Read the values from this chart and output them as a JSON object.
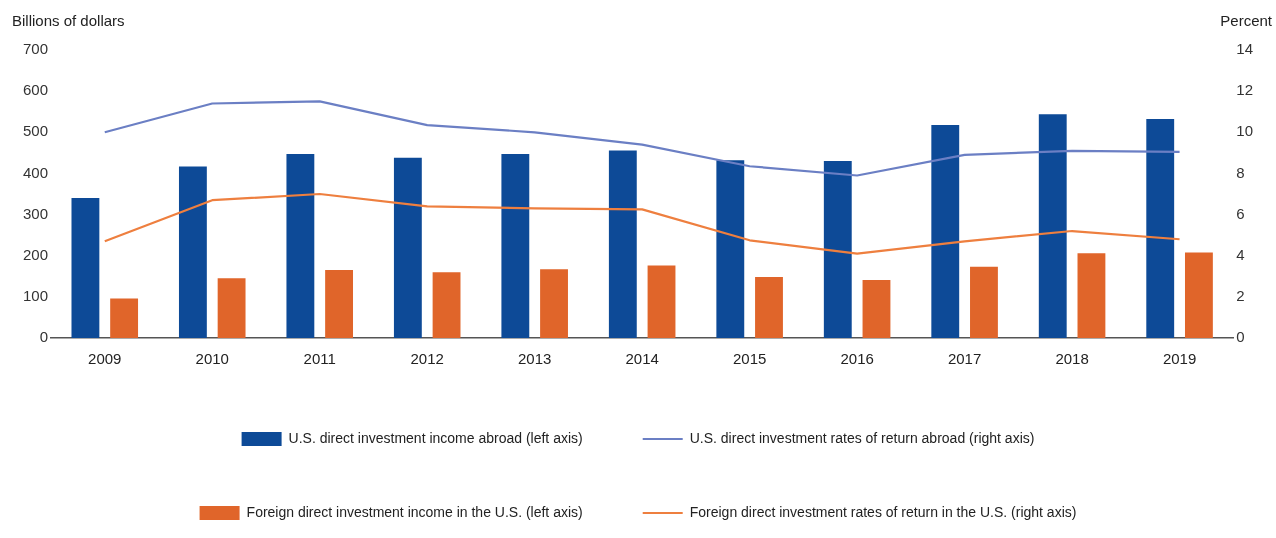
{
  "chart_data": {
    "type": "bar",
    "ylabel": "Billions of dollars",
    "y2label": "Percent",
    "categories": [
      "2009",
      "2010",
      "2011",
      "2012",
      "2013",
      "2014",
      "2015",
      "2016",
      "2017",
      "2018",
      "2019"
    ],
    "series": [
      {
        "name": "U.S. direct investment income abroad (left axis)",
        "axis": "y",
        "color": "#0d4a97",
        "values": [
          340,
          417,
          447,
          438,
          447,
          456,
          432,
          430,
          518,
          544,
          532
        ]
      },
      {
        "name": "U.S. direct investment rates of return abroad (right axis)",
        "type": "line",
        "axis": "y2",
        "color": "#6b7fc4",
        "values": [
          10.0,
          11.4,
          11.5,
          10.35,
          10.0,
          9.4,
          8.35,
          7.9,
          8.9,
          9.1,
          9.05
        ]
      },
      {
        "name": "Foreign direct investment income in the U.S. (left axis)",
        "axis": "y",
        "color": "#e0652a",
        "values": [
          96,
          145,
          165,
          160,
          167,
          176,
          148,
          141,
          173,
          206,
          208
        ]
      },
      {
        "name": "Foreign direct investment rates of return in the U.S. (right axis)",
        "type": "line",
        "axis": "y2",
        "color": "#ee7f3f",
        "values": [
          4.7,
          6.7,
          7.0,
          6.4,
          6.3,
          6.25,
          4.75,
          4.1,
          4.7,
          5.2,
          4.8
        ]
      }
    ],
    "ylim": [
      0,
      700
    ],
    "yticks": [
      0,
      100,
      200,
      300,
      400,
      500,
      600,
      700
    ],
    "y2lim": [
      0,
      14
    ],
    "y2ticks": [
      0,
      2,
      4,
      6,
      8,
      10,
      12,
      14
    ],
    "grid": false,
    "legend": "bottom",
    "marker": "none",
    "line_style": "solid"
  }
}
